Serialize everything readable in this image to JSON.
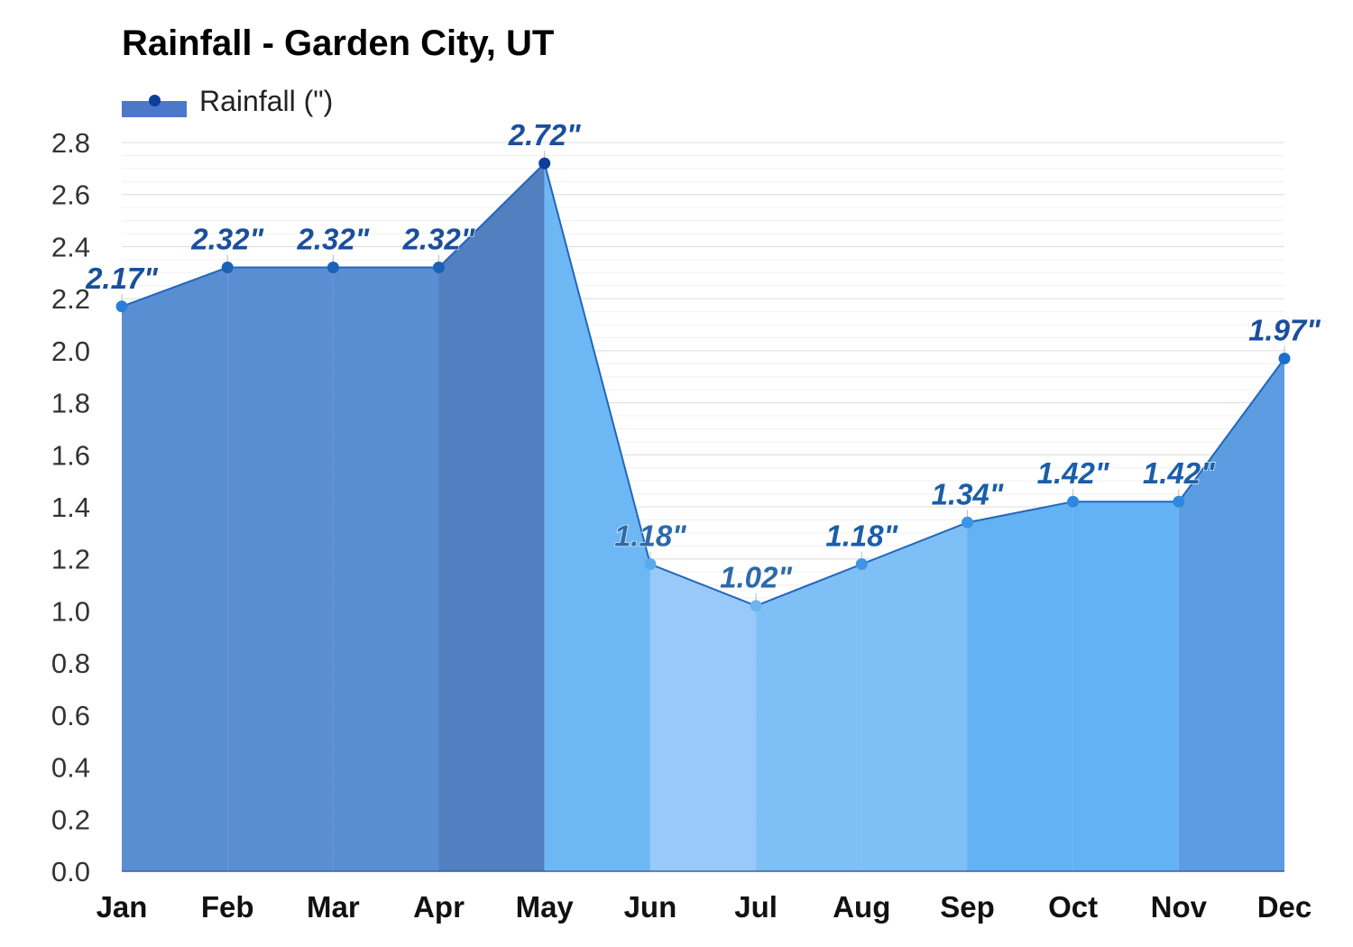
{
  "chart_data": {
    "type": "area",
    "title": "Rainfall - Garden City, UT",
    "xlabel": "",
    "ylabel": "",
    "categories": [
      "Jan",
      "Feb",
      "Mar",
      "Apr",
      "May",
      "Jun",
      "Jul",
      "Aug",
      "Sep",
      "Oct",
      "Nov",
      "Dec"
    ],
    "series": [
      {
        "name": "Rainfall (\")",
        "values": [
          2.17,
          2.32,
          2.32,
          2.32,
          2.72,
          1.18,
          1.02,
          1.18,
          1.34,
          1.42,
          1.42,
          1.97
        ]
      }
    ],
    "data_labels": [
      "2.17\"",
      "2.32\"",
      "2.32\"",
      "2.32\"",
      "2.72\"",
      "1.18\"",
      "1.02\"",
      "1.18\"",
      "1.34\"",
      "1.42\"",
      "1.42\"",
      "1.97\""
    ],
    "ylim": [
      0,
      2.8
    ],
    "yticks": [
      "0.0",
      "0.2",
      "0.4",
      "0.6",
      "0.8",
      "1.0",
      "1.2",
      "1.4",
      "1.6",
      "1.8",
      "2.0",
      "2.2",
      "2.4",
      "2.6",
      "2.8"
    ],
    "grid": true,
    "legend_position": "top-left",
    "colors": {
      "segment_fills": [
        "#5a8ed2",
        "#5a8ed2",
        "#5a8ed2",
        "#527fbf",
        "#6db7f5",
        "#98c9f8",
        "#7ebff5",
        "#7ebff5",
        "#63b2f3",
        "#63b2f3",
        "#5b9de0"
      ],
      "line": "#2266bb",
      "points": [
        "#2a80d8",
        "#1a62b8",
        "#1a62b8",
        "#1a62b8",
        "#0d3f9a",
        "#5aaaee",
        "#6db4f0",
        "#3d95e6",
        "#3d95e6",
        "#2e88e0",
        "#2e88e0",
        "#1a6fcc"
      ],
      "labels": [
        "#1a4f9c",
        "#1a4f9c",
        "#1a4f9c",
        "#1a4f9c",
        "#1a4f9c",
        "#2e6aa8",
        "#2e6aa8",
        "#1a5ea8",
        "#1a5ea8",
        "#1a5ea8",
        "#1a5ea8",
        "#1a4f9c"
      ],
      "legend_band": "#4b78c8",
      "legend_dot": "#0d3f9a"
    }
  }
}
